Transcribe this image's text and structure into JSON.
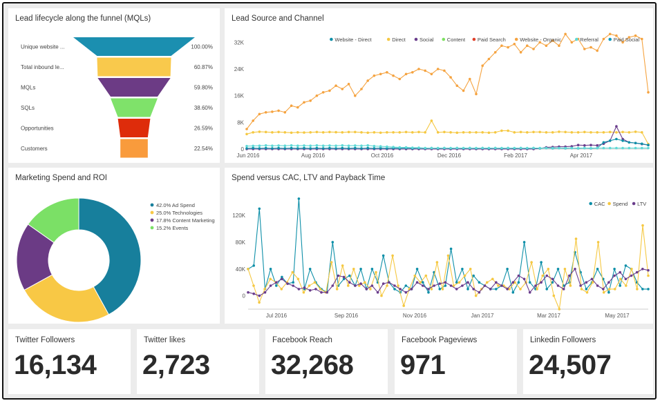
{
  "funnel": {
    "title": "Lead lifecycle along the funnel (MQLs)",
    "stages": [
      {
        "label": "Unique website ...",
        "value": "100.00%",
        "fraction": 1.0,
        "color": "#1b8fb0"
      },
      {
        "label": "Total inbound le...",
        "value": "60.87%",
        "fraction": 0.6087,
        "color": "#f9c94c"
      },
      {
        "label": "MQLs",
        "value": "59.80%",
        "fraction": 0.598,
        "color": "#6c3b85"
      },
      {
        "label": "SQLs",
        "value": "38.60%",
        "fraction": 0.386,
        "color": "#7fe26a"
      },
      {
        "label": "Opportunities",
        "value": "26.59%",
        "fraction": 0.2659,
        "color": "#de2c0b"
      },
      {
        "label": "Customers",
        "value": "22.54%",
        "fraction": 0.2254,
        "color": "#f99b3c"
      }
    ]
  },
  "lead_source": {
    "title": "Lead Source and Channel",
    "legend": [
      {
        "name": "Website - Direct",
        "color": "#0d8fa8"
      },
      {
        "name": "Direct",
        "color": "#f5c842"
      },
      {
        "name": "Social",
        "color": "#6a3d8c"
      },
      {
        "name": "Content",
        "color": "#7ee062"
      },
      {
        "name": "Paid Search",
        "color": "#e0402a"
      },
      {
        "name": "Website - Organic",
        "color": "#f5a340"
      },
      {
        "name": "Referral",
        "color": "#5fd9d6"
      },
      {
        "name": "Paid Social",
        "color": "#0c9bbd"
      }
    ],
    "y_ticks": [
      "32K",
      "24K",
      "16K",
      "8K",
      "0"
    ],
    "x_ticks": [
      "Jun 2016",
      "Aug 2016",
      "Oct 2016",
      "Dec 2016",
      "Feb 2017",
      "Apr 2017"
    ]
  },
  "spend_roi": {
    "title": "Marketing Spend and ROI",
    "legend": [
      {
        "label": "42.0% Ad Spend",
        "color": "#177f9c"
      },
      {
        "label": "25.0% Technologies",
        "color": "#f8c845"
      },
      {
        "label": "17.8% Content Marketing",
        "color": "#6b3b85"
      },
      {
        "label": "15.2% Events",
        "color": "#7be066"
      }
    ]
  },
  "cac": {
    "title": "Spend versus CAC, LTV and Payback Time",
    "legend": [
      {
        "name": "CAC",
        "color": "#0d8fa8"
      },
      {
        "name": "Spend",
        "color": "#f5c842"
      },
      {
        "name": "LTV",
        "color": "#6a3d8c"
      }
    ],
    "y_ticks": [
      "120K",
      "80K",
      "40K",
      "0"
    ],
    "x_ticks": [
      "Jul 2016",
      "Sep 2016",
      "Nov 2016",
      "Jan 2017",
      "Mar 2017",
      "May 2017"
    ]
  },
  "metrics": [
    {
      "title": "Twitter Followers",
      "value": "16,134"
    },
    {
      "title": "Twitter likes",
      "value": "2,723"
    },
    {
      "title": "Facebook Reach",
      "value": "32,268"
    },
    {
      "title": "Facebook Pageviews",
      "value": "971"
    },
    {
      "title": "Linkedin Followers",
      "value": "24,507"
    }
  ],
  "chart_data": [
    {
      "type": "bar",
      "title": "Lead lifecycle along the funnel (MQLs)",
      "categories": [
        "Unique website ...",
        "Total inbound le...",
        "MQLs",
        "SQLs",
        "Opportunities",
        "Customers"
      ],
      "values": [
        100.0,
        60.87,
        59.8,
        38.6,
        26.59,
        22.54
      ]
    },
    {
      "type": "line",
      "title": "Lead Source and Channel",
      "ylim": [
        0,
        36000
      ],
      "series": [
        {
          "name": "Website - Organic",
          "values": [
            6000,
            8500,
            10500,
            11000,
            11200,
            11500,
            11000,
            13000,
            12500,
            14000,
            14500,
            16000,
            17000,
            17500,
            19000,
            18000,
            19500,
            16000,
            18000,
            20500,
            22000,
            22500,
            23000,
            22000,
            21000,
            22500,
            23000,
            24000,
            23500,
            22500,
            24000,
            23500,
            21500,
            19000,
            17500,
            21000,
            16500,
            25000,
            27000,
            29000,
            31000,
            30500,
            31500,
            29000,
            31000,
            30000,
            32000,
            31000,
            32500,
            31000,
            34500,
            32000,
            33000,
            30000,
            30500,
            29500,
            33000,
            34500,
            34000,
            32000,
            33500,
            34000,
            33000,
            17000
          ]
        },
        {
          "name": "Direct",
          "values": [
            4500,
            5000,
            5200,
            5100,
            5000,
            5100,
            5000,
            4900,
            5000,
            4950,
            5000,
            5100,
            5000,
            5100,
            5050,
            5000,
            5100,
            5100,
            5000,
            4900,
            5000,
            4900,
            5000,
            5000,
            5000,
            5100,
            5000,
            5100,
            5000,
            8500,
            5000,
            5100,
            5000,
            4900,
            5000,
            5000,
            5000,
            5000,
            4900,
            5000,
            5500,
            5500,
            5000,
            5100,
            5000,
            5100,
            5100,
            5000,
            5000,
            5200,
            5100,
            5000,
            5000,
            5100,
            5000,
            5000,
            5000,
            5100,
            5000,
            5100,
            5000,
            5200,
            5000,
            1500
          ]
        },
        {
          "name": "Social",
          "values": [
            0,
            0,
            0,
            0,
            0,
            0,
            0,
            0,
            0,
            0,
            0,
            0,
            0,
            0,
            0,
            0,
            0,
            0,
            0,
            0,
            0,
            0,
            0,
            0,
            0,
            0,
            0,
            0,
            0,
            0,
            0,
            0,
            0,
            0,
            0,
            0,
            0,
            0,
            0,
            0,
            0,
            0,
            0,
            0,
            0,
            0,
            200,
            500,
            600,
            700,
            700,
            800,
            1200,
            1100,
            1200,
            1100,
            1600,
            2500,
            6800,
            3000,
            2000,
            1800,
            1500,
            1200
          ]
        },
        {
          "name": "Website - Direct",
          "values": [
            200,
            300,
            200,
            300,
            200,
            300,
            200,
            300,
            200,
            300,
            200,
            300,
            200,
            300,
            200,
            300,
            200,
            300,
            200,
            300,
            200,
            300,
            200,
            300,
            200,
            300,
            200,
            300,
            200,
            300,
            200,
            300,
            200,
            300,
            200,
            300,
            200,
            300,
            200,
            300,
            200,
            300,
            200,
            300,
            200,
            300,
            200,
            300,
            200,
            300,
            200,
            300,
            200,
            300,
            200,
            300,
            2000,
            2500,
            3000,
            2500,
            2000,
            1800,
            1600,
            1200
          ]
        },
        {
          "name": "Referral",
          "values": [
            900,
            950,
            1000,
            1100,
            1000,
            1050,
            1000,
            1100,
            1000,
            1050,
            1000,
            1100,
            1000,
            1050,
            1000,
            1100,
            1000,
            1050,
            1000,
            1100,
            900,
            800,
            700,
            600,
            500,
            500,
            400,
            400,
            300,
            300,
            300,
            300,
            300,
            300,
            300,
            300,
            300,
            300,
            300,
            300,
            300,
            300,
            300,
            300,
            300,
            300,
            300,
            300,
            300,
            300,
            300,
            300,
            300,
            300,
            300,
            300,
            300,
            300,
            300,
            300,
            300,
            300,
            300,
            300
          ]
        }
      ]
    },
    {
      "type": "pie",
      "title": "Marketing Spend and ROI",
      "categories": [
        "Ad Spend",
        "Technologies",
        "Content Marketing",
        "Events"
      ],
      "values": [
        42.0,
        25.0,
        17.8,
        15.2
      ]
    },
    {
      "type": "line",
      "title": "Spend versus CAC, LTV and Payback Time",
      "ylim": [
        -20000,
        150000
      ],
      "series": [
        {
          "name": "CAC",
          "values": [
            40000,
            45000,
            130000,
            10000,
            40000,
            15000,
            28000,
            18000,
            20000,
            145000,
            10000,
            40000,
            20000,
            10000,
            5000,
            80000,
            15000,
            25000,
            30000,
            15000,
            40000,
            10000,
            40000,
            20000,
            60000,
            20000,
            10000,
            5000,
            15000,
            10000,
            40000,
            20000,
            5000,
            35000,
            10000,
            15000,
            70000,
            20000,
            40000,
            10000,
            30000,
            20000,
            15000,
            10000,
            10000,
            15000,
            40000,
            5000,
            20000,
            80000,
            20000,
            10000,
            50000,
            10000,
            20000,
            40000,
            15000,
            20000,
            65000,
            35000,
            10000,
            20000,
            40000,
            25000,
            5000,
            40000,
            15000,
            45000,
            40000,
            20000,
            10000,
            10000
          ]
        },
        {
          "name": "Spend",
          "values": [
            40000,
            15000,
            -10000,
            10000,
            25000,
            20000,
            10000,
            20000,
            35000,
            25000,
            5000,
            15000,
            20000,
            10000,
            5000,
            50000,
            10000,
            45000,
            15000,
            40000,
            15000,
            20000,
            10000,
            35000,
            0,
            15000,
            60000,
            15000,
            -15000,
            10000,
            30000,
            20000,
            30000,
            10000,
            50000,
            10000,
            60000,
            15000,
            20000,
            30000,
            40000,
            0,
            10000,
            20000,
            25000,
            15000,
            15000,
            10000,
            20000,
            10000,
            20000,
            50000,
            10000,
            30000,
            40000,
            0,
            -20000,
            40000,
            15000,
            85000,
            10000,
            5000,
            20000,
            80000,
            5000,
            10000,
            10000,
            25000,
            15000,
            40000,
            10000,
            105000,
            30000
          ]
        },
        {
          "name": "LTV",
          "values": [
            5000,
            3000,
            0,
            5000,
            15000,
            20000,
            25000,
            18000,
            15000,
            10000,
            12000,
            8000,
            10000,
            5000,
            5000,
            15000,
            30000,
            28000,
            20000,
            15000,
            18000,
            10000,
            15000,
            5000,
            18000,
            20000,
            15000,
            10000,
            5000,
            10000,
            20000,
            15000,
            10000,
            15000,
            18000,
            20000,
            15000,
            10000,
            15000,
            20000,
            10000,
            5000,
            15000,
            10000,
            20000,
            15000,
            10000,
            20000,
            30000,
            25000,
            5000,
            15000,
            20000,
            30000,
            25000,
            15000,
            10000,
            30000,
            40000,
            15000,
            20000,
            25000,
            15000,
            10000,
            20000,
            30000,
            35000,
            25000,
            30000,
            35000,
            40000,
            38000
          ]
        }
      ]
    }
  ]
}
